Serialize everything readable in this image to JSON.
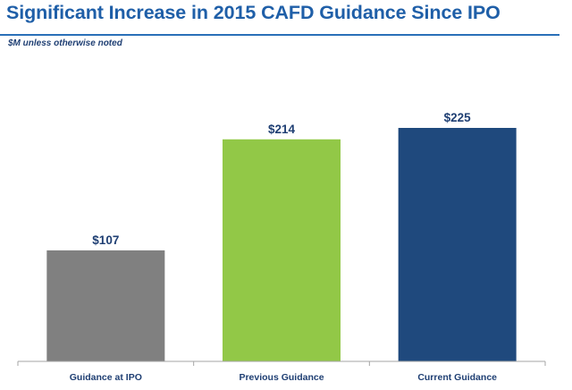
{
  "header": {
    "title": "Significant Increase in 2015 CAFD Guidance Since IPO",
    "subtitle": "$M unless otherwise noted"
  },
  "chart_data": {
    "type": "bar",
    "categories": [
      "Guidance at IPO",
      "Previous Guidance",
      "Current Guidance"
    ],
    "values": [
      107,
      214,
      225
    ],
    "data_labels": [
      "$107",
      "$214",
      "$225"
    ],
    "bar_colors": [
      "#808080",
      "#92c847",
      "#1f497d"
    ],
    "title": "",
    "xlabel": "",
    "ylabel": "",
    "ylim": [
      0,
      225
    ],
    "grid": false,
    "legend": "none"
  }
}
